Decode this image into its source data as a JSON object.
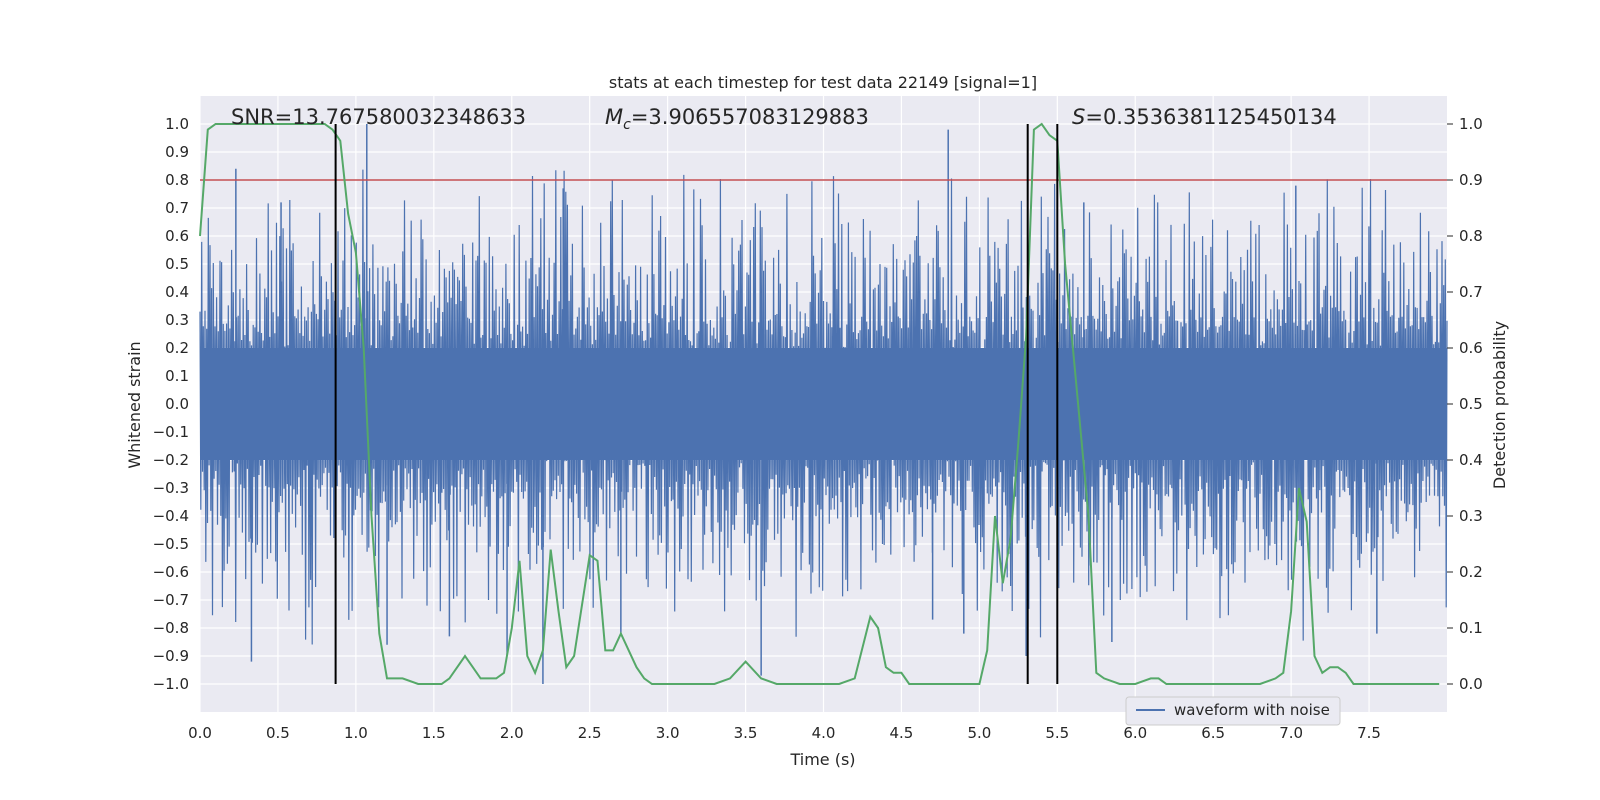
{
  "chart_data": {
    "type": "line",
    "title": "stats at each timestep for test data 22149 [signal=1]",
    "xlabel": "Time (s)",
    "ylabel": "Whitened strain",
    "y2label": "Detection probability",
    "xlim": [
      0.0,
      8.0
    ],
    "ylim": [
      -1.1,
      1.1
    ],
    "y2lim": [
      -0.05,
      1.05
    ],
    "grid": true,
    "legend_position": "lower-right",
    "x_ticks": [
      "0.0",
      "0.5",
      "1.0",
      "1.5",
      "2.0",
      "2.5",
      "3.0",
      "3.5",
      "4.0",
      "4.5",
      "5.0",
      "5.5",
      "6.0",
      "6.5",
      "7.0",
      "7.5"
    ],
    "y_ticks": [
      "1.0",
      "0.9",
      "0.8",
      "0.7",
      "0.6",
      "0.5",
      "0.4",
      "0.3",
      "0.2",
      "0.1",
      "0.0",
      "−0.1",
      "−0.2",
      "−0.3",
      "−0.4",
      "−0.5",
      "−0.6",
      "−0.7",
      "−0.8",
      "−0.9",
      "−1.0"
    ],
    "y2_ticks": [
      "1.0",
      "0.9",
      "0.8",
      "0.7",
      "0.6",
      "0.5",
      "0.4",
      "0.3",
      "0.2",
      "0.1",
      "0.0"
    ],
    "annotations": {
      "snr": "SNR=13.767580032348633",
      "mc_symbol": "M",
      "mc_subscript": "c",
      "mc_value": "=3.906557083129883",
      "s_symbol": "S",
      "s_value": "=0.3536381125450134"
    },
    "threshold": {
      "y2": 0.9,
      "color": "#c44e52"
    },
    "vertical_lines": [
      0.87,
      5.31,
      5.5
    ],
    "series": [
      {
        "name": "waveform with noise",
        "axis": "left",
        "color": "#4c72b0",
        "x_range": [
          0.0,
          8.0
        ],
        "typical_envelope": [
          -0.4,
          0.4
        ],
        "spikes": [
          {
            "x": 0.23,
            "y": 0.84
          },
          {
            "x": 0.33,
            "y": -0.92
          },
          {
            "x": 0.52,
            "y": 0.72
          },
          {
            "x": 0.87,
            "y": -0.67
          },
          {
            "x": 1.07,
            "y": 1.0
          },
          {
            "x": 1.2,
            "y": -0.86
          },
          {
            "x": 1.6,
            "y": -0.83
          },
          {
            "x": 1.97,
            "y": -0.9
          },
          {
            "x": 2.2,
            "y": -1.0
          },
          {
            "x": 2.33,
            "y": 0.77
          },
          {
            "x": 2.7,
            "y": -0.82
          },
          {
            "x": 3.6,
            "y": -0.97
          },
          {
            "x": 4.7,
            "y": -0.77
          },
          {
            "x": 4.8,
            "y": 0.98
          },
          {
            "x": 4.9,
            "y": -0.82
          },
          {
            "x": 5.3,
            "y": -0.9
          },
          {
            "x": 5.67,
            "y": 0.72
          },
          {
            "x": 5.85,
            "y": -0.85
          },
          {
            "x": 7.03,
            "y": 0.78
          },
          {
            "x": 7.55,
            "y": -0.82
          }
        ]
      },
      {
        "name": "",
        "axis": "right",
        "color": "#55a868",
        "x": [
          0.0,
          0.05,
          0.1,
          0.2,
          0.3,
          0.4,
          0.5,
          0.6,
          0.7,
          0.8,
          0.85,
          0.9,
          0.95,
          1.0,
          1.05,
          1.1,
          1.15,
          1.2,
          1.3,
          1.4,
          1.5,
          1.55,
          1.6,
          1.7,
          1.75,
          1.8,
          1.9,
          1.95,
          2.0,
          2.05,
          2.1,
          2.15,
          2.2,
          2.25,
          2.3,
          2.35,
          2.4,
          2.5,
          2.55,
          2.6,
          2.65,
          2.7,
          2.8,
          2.85,
          2.9,
          3.0,
          3.1,
          3.2,
          3.3,
          3.4,
          3.5,
          3.6,
          3.7,
          3.8,
          3.9,
          4.0,
          4.1,
          4.2,
          4.3,
          4.35,
          4.4,
          4.45,
          4.5,
          4.55,
          4.6,
          4.7,
          4.8,
          4.9,
          5.0,
          5.05,
          5.1,
          5.15,
          5.2,
          5.25,
          5.3,
          5.35,
          5.4,
          5.45,
          5.5,
          5.55,
          5.6,
          5.65,
          5.7,
          5.75,
          5.8,
          5.9,
          6.0,
          6.1,
          6.15,
          6.2,
          6.3,
          6.4,
          6.5,
          6.6,
          6.7,
          6.8,
          6.9,
          6.95,
          7.0,
          7.05,
          7.1,
          7.15,
          7.2,
          7.25,
          7.3,
          7.35,
          7.4,
          7.5,
          7.6,
          7.7,
          7.8,
          7.95
        ],
        "y": [
          0.8,
          0.99,
          1.0,
          1.0,
          1.0,
          1.0,
          1.0,
          1.0,
          1.0,
          1.0,
          0.99,
          0.97,
          0.84,
          0.77,
          0.6,
          0.3,
          0.09,
          0.01,
          0.01,
          0.0,
          0.0,
          0.0,
          0.01,
          0.05,
          0.03,
          0.01,
          0.01,
          0.02,
          0.1,
          0.22,
          0.05,
          0.02,
          0.06,
          0.24,
          0.13,
          0.03,
          0.05,
          0.23,
          0.22,
          0.06,
          0.06,
          0.09,
          0.03,
          0.01,
          0.0,
          0.0,
          0.0,
          0.0,
          0.0,
          0.01,
          0.04,
          0.01,
          0.0,
          0.0,
          0.0,
          0.0,
          0.0,
          0.01,
          0.12,
          0.1,
          0.03,
          0.02,
          0.02,
          0.0,
          0.0,
          0.0,
          0.0,
          0.0,
          0.0,
          0.06,
          0.3,
          0.18,
          0.26,
          0.43,
          0.62,
          0.99,
          1.0,
          0.98,
          0.97,
          0.75,
          0.6,
          0.45,
          0.3,
          0.02,
          0.01,
          0.0,
          0.0,
          0.01,
          0.01,
          0.0,
          0.0,
          0.0,
          0.0,
          0.0,
          0.0,
          0.0,
          0.01,
          0.02,
          0.13,
          0.35,
          0.29,
          0.05,
          0.02,
          0.03,
          0.03,
          0.02,
          0.0,
          0.0,
          0.0,
          0.0,
          0.0,
          0.0
        ]
      }
    ]
  },
  "legend": {
    "label": "waveform with noise"
  }
}
